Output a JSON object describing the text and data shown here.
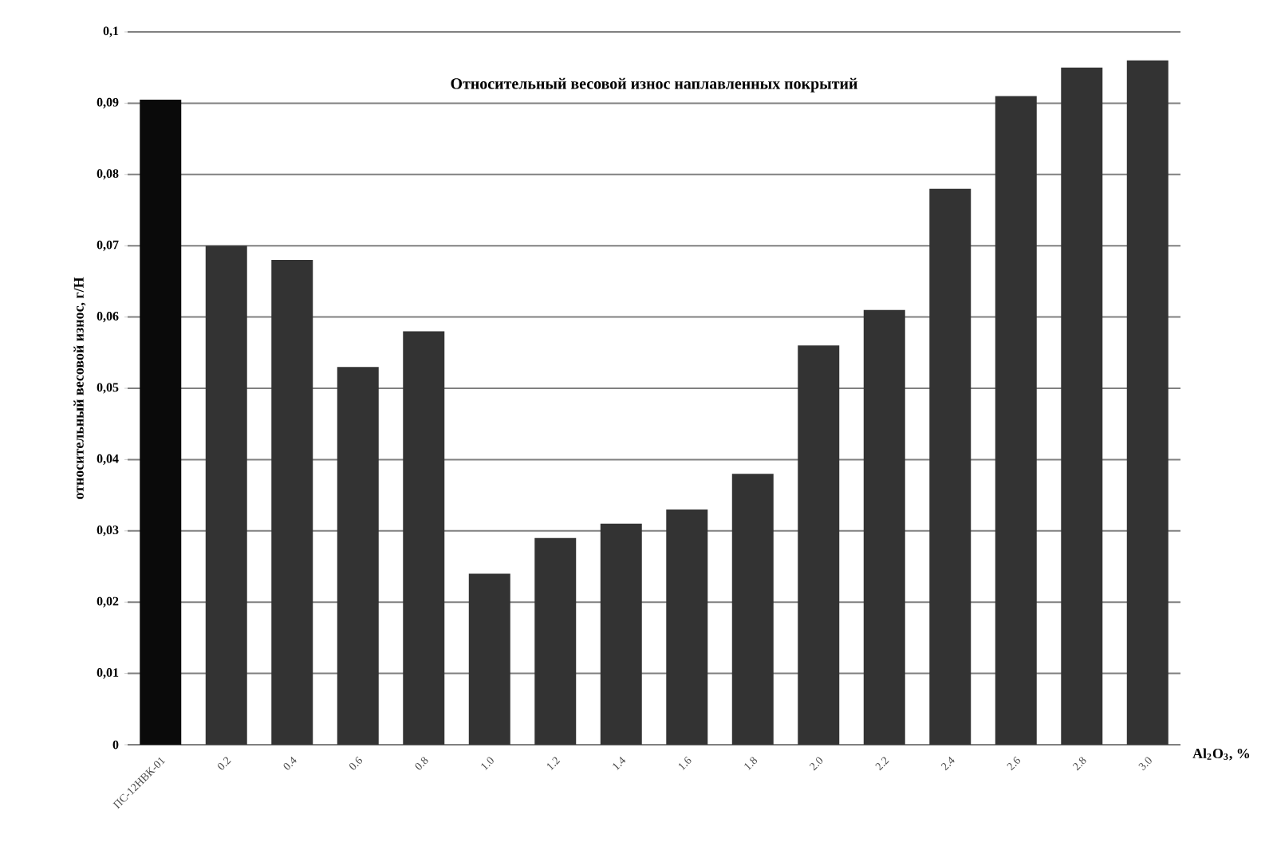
{
  "chart_data": {
    "type": "bar",
    "title": "Относительный весовой износ наплавленных покрытий",
    "xlabel": "Al$_{2}$O$_{3}$, %",
    "ylabel": "относительный весовой износ, г/Н",
    "categories": [
      "ПС-12НВК-01",
      "0.2",
      "0.4",
      "0.6",
      "0.8",
      "1.0",
      "1.2",
      "1.4",
      "1.6",
      "1.8",
      "2.0",
      "2.2",
      "2.4",
      "2.6",
      "2.8",
      "3.0"
    ],
    "values": [
      0.0905,
      0.07,
      0.068,
      0.053,
      0.058,
      0.024,
      0.029,
      0.031,
      0.033,
      0.038,
      0.056,
      0.061,
      0.078,
      0.091,
      0.095,
      0.096
    ],
    "colors": [
      "#0a0a0a",
      "#333333",
      "#333333",
      "#333333",
      "#333333",
      "#333333",
      "#333333",
      "#333333",
      "#333333",
      "#333333",
      "#333333",
      "#333333",
      "#333333",
      "#333333",
      "#333333",
      "#333333"
    ],
    "ylim": [
      0,
      0.1
    ],
    "yticks": [
      0,
      {
        "value": 0.01,
        "label": "0,01"
      },
      {
        "value": 0.02,
        "label": "0,02"
      },
      {
        "value": 0.03,
        "label": "0,03"
      },
      {
        "value": 0.04,
        "label": "0,04"
      },
      {
        "value": 0.05,
        "label": "0,05"
      },
      {
        "value": 0.06,
        "label": "0,06"
      },
      {
        "value": 0.07,
        "label": "0,07"
      },
      {
        "value": 0.08,
        "label": "0,08"
      },
      {
        "value": 0.09,
        "label": "0,09"
      },
      {
        "value": 0.1,
        "label": "0,1"
      }
    ],
    "grid": "y"
  }
}
